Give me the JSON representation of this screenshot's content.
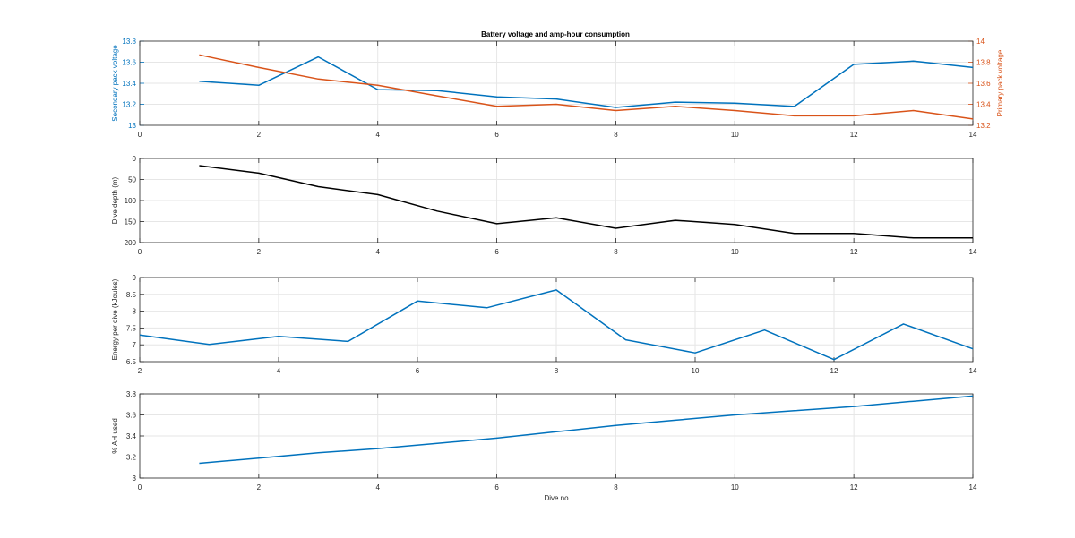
{
  "figure": {
    "title": "Battery voltage and amp-hour consumption",
    "colors": {
      "blue": "#0072bd",
      "orange": "#d95319",
      "black": "#000000",
      "axis": "#262626",
      "grid": "#e6e6e6"
    }
  },
  "chart_data": [
    {
      "type": "line",
      "title": "Battery voltage and amp-hour consumption",
      "xlabel": "",
      "xlim": [
        0,
        14
      ],
      "xticks": [
        0,
        2,
        4,
        6,
        8,
        10,
        12,
        14
      ],
      "grid": true,
      "series": [
        {
          "name": "Secondary pack voltage",
          "axis": "left",
          "ylabel": "Secondary pack voltage",
          "ylim": [
            13,
            13.8
          ],
          "yticks": [
            13,
            13.2,
            13.4,
            13.6,
            13.8
          ],
          "ytick_labels": [
            "13",
            "13.2",
            "13.4",
            "13.6",
            "13.8"
          ],
          "color": "blue",
          "x": [
            1,
            2,
            3,
            4,
            5,
            6,
            7,
            8,
            9,
            10,
            11,
            12,
            13,
            14
          ],
          "values": [
            13.42,
            13.38,
            13.65,
            13.34,
            13.33,
            13.27,
            13.25,
            13.17,
            13.22,
            13.21,
            13.18,
            13.58,
            13.61,
            13.55
          ]
        },
        {
          "name": "Primary pack voltage",
          "axis": "right",
          "ylabel": "Primary pack voltage",
          "ylim": [
            13.2,
            14
          ],
          "yticks": [
            13.2,
            13.4,
            13.6,
            13.8,
            14
          ],
          "ytick_labels": [
            "13.2",
            "13.4",
            "13.6",
            "13.8",
            "14"
          ],
          "color": "orange",
          "x": [
            1,
            2,
            3,
            4,
            5,
            6,
            7,
            8,
            9,
            10,
            11,
            12,
            13,
            14
          ],
          "values": [
            13.87,
            13.75,
            13.64,
            13.58,
            13.48,
            13.38,
            13.4,
            13.34,
            13.38,
            13.34,
            13.29,
            13.29,
            13.34,
            13.26
          ]
        }
      ]
    },
    {
      "type": "line",
      "xlabel": "",
      "ylabel": "Dive depth (m)",
      "xlim": [
        0,
        14
      ],
      "xticks": [
        0,
        2,
        4,
        6,
        8,
        10,
        12,
        14
      ],
      "ylim": [
        0,
        200
      ],
      "y_reversed": true,
      "yticks": [
        0,
        50,
        100,
        150,
        200
      ],
      "ytick_labels": [
        "0",
        "50",
        "100",
        "150",
        "200"
      ],
      "grid": true,
      "series": [
        {
          "color": "black",
          "x": [
            1,
            2,
            3,
            4,
            5,
            6,
            7,
            8,
            9,
            10,
            11,
            12,
            13,
            14
          ],
          "values": [
            17,
            35,
            67,
            86,
            125,
            155,
            141,
            166,
            147,
            157,
            178,
            178,
            189,
            189
          ]
        }
      ]
    },
    {
      "type": "line",
      "xlabel": "",
      "ylabel": "Energy per dive (kJoules)",
      "xlim": [
        2,
        14
      ],
      "xticks": [
        2,
        4,
        6,
        8,
        10,
        12,
        14
      ],
      "ylim": [
        6.5,
        9
      ],
      "yticks": [
        6.5,
        7,
        7.5,
        8,
        8.5,
        9
      ],
      "ytick_labels": [
        "6.5",
        "7",
        "7.5",
        "8",
        "8.5",
        "9"
      ],
      "grid": true,
      "series": [
        {
          "color": "blue",
          "x": [
            2,
            3,
            4,
            5,
            6,
            7,
            8,
            9,
            10,
            11,
            12,
            13,
            14
          ],
          "values": [
            7.29,
            7.01,
            7.25,
            7.1,
            8.3,
            8.1,
            8.63,
            7.15,
            6.76,
            7.44,
            6.56,
            7.62,
            6.88
          ]
        }
      ]
    },
    {
      "type": "line",
      "xlabel": "Dive no",
      "ylabel": "% AH used",
      "xlim": [
        0,
        14
      ],
      "xticks": [
        0,
        2,
        4,
        6,
        8,
        10,
        12,
        14
      ],
      "ylim": [
        3,
        3.8
      ],
      "yticks": [
        3,
        3.2,
        3.4,
        3.6,
        3.8
      ],
      "ytick_labels": [
        "3",
        "3.2",
        "3.4",
        "3.6",
        "3.8"
      ],
      "grid": true,
      "series": [
        {
          "color": "blue",
          "x": [
            1,
            2,
            3,
            4,
            5,
            6,
            7,
            8,
            9,
            10,
            11,
            12,
            13,
            14
          ],
          "values": [
            3.14,
            3.19,
            3.24,
            3.28,
            3.33,
            3.38,
            3.44,
            3.5,
            3.55,
            3.6,
            3.64,
            3.68,
            3.73,
            3.78
          ]
        }
      ]
    }
  ]
}
